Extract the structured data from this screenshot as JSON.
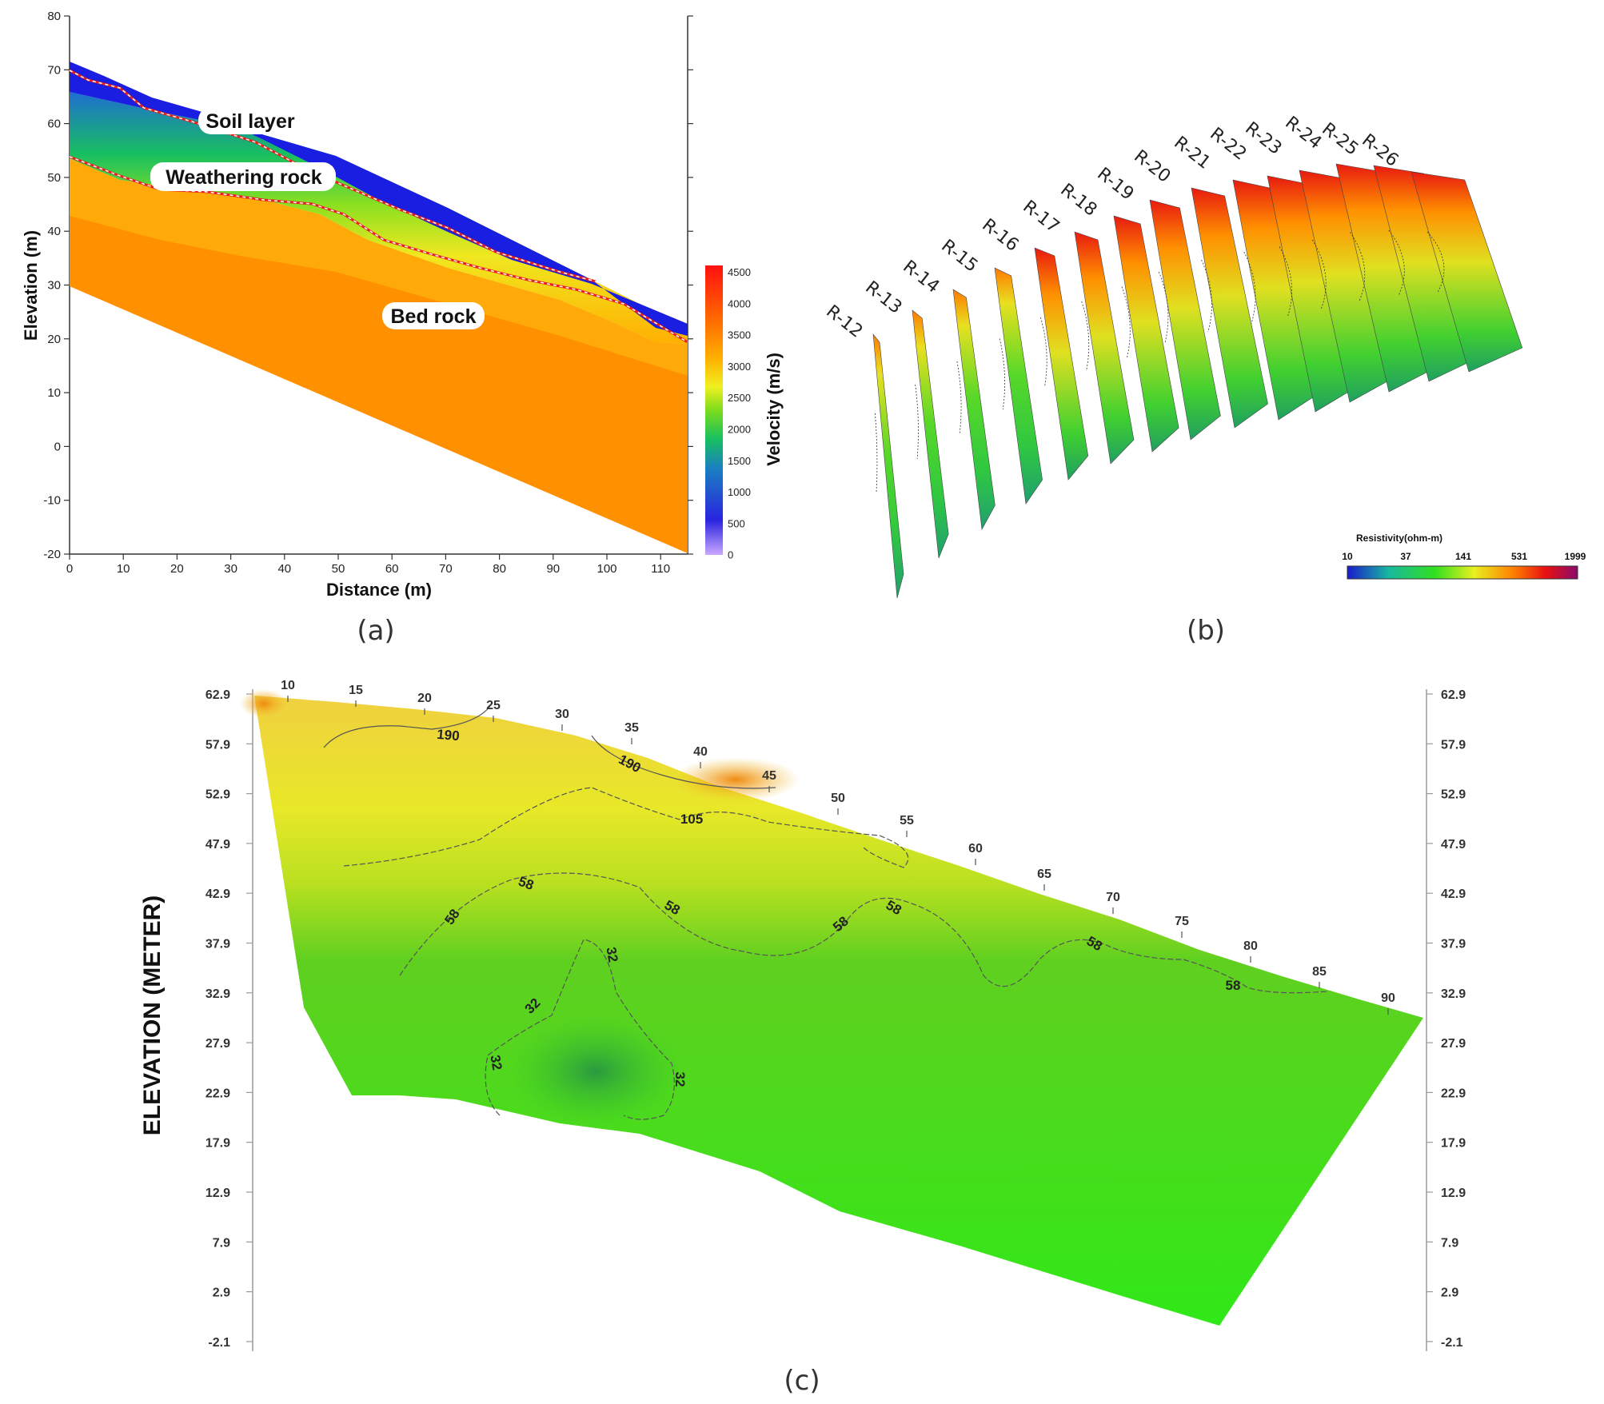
{
  "panel_a": {
    "label": "(a)",
    "xlabel": "Distance (m)",
    "ylabel": "Elevation (m)",
    "x_ticks": [
      "0",
      "10",
      "20",
      "30",
      "40",
      "50",
      "60",
      "70",
      "80",
      "90",
      "100",
      "110"
    ],
    "y_ticks": [
      "80",
      "70",
      "60",
      "50",
      "40",
      "30",
      "20",
      "10",
      "0",
      "-10",
      "-20"
    ],
    "layers": [
      "Soil layer",
      "Weathering rock",
      "Bed rock"
    ],
    "colorbar_title": "Velocity (m/s)",
    "colorbar_ticks": [
      "4500",
      "4000",
      "3500",
      "3000",
      "2500",
      "2000",
      "1500",
      "1000",
      "500",
      "0"
    ]
  },
  "panel_b": {
    "label": "(b)",
    "profiles": [
      "R-12",
      "R-13",
      "R-14",
      "R-15",
      "R-16",
      "R-17",
      "R-18",
      "R-19",
      "R-20",
      "R-21",
      "R-22",
      "R-23",
      "R-24",
      "R-25",
      "R-26"
    ],
    "highlight_profile": "R-20",
    "highlight_color": "#e8201c",
    "colorbar_title": "Resistivity(ohm-m)",
    "colorbar_ticks": [
      "10",
      "37",
      "141",
      "531",
      "1999"
    ]
  },
  "panel_c": {
    "label": "(c)",
    "ylabel": "ELEVATION (METER)",
    "y_ticks": [
      "62.9",
      "57.9",
      "52.9",
      "47.9",
      "42.9",
      "37.9",
      "32.9",
      "27.9",
      "22.9",
      "17.9",
      "12.9",
      "7.9",
      "2.9",
      "-2.1"
    ],
    "top_ticks": [
      "10",
      "15",
      "20",
      "25",
      "30",
      "35",
      "40",
      "45",
      "50",
      "55",
      "60",
      "65",
      "70",
      "75",
      "80",
      "85",
      "90"
    ],
    "contour_labels": [
      "190",
      "190",
      "105",
      "58",
      "58",
      "58",
      "58",
      "58",
      "58",
      "58",
      "32",
      "32",
      "32",
      "32",
      "32"
    ]
  },
  "colors": {
    "soil": "#1a1ee0",
    "bedrock": "#ff9a00",
    "boundary": "#e8201c",
    "resistivity_green": "#3cf21a"
  }
}
